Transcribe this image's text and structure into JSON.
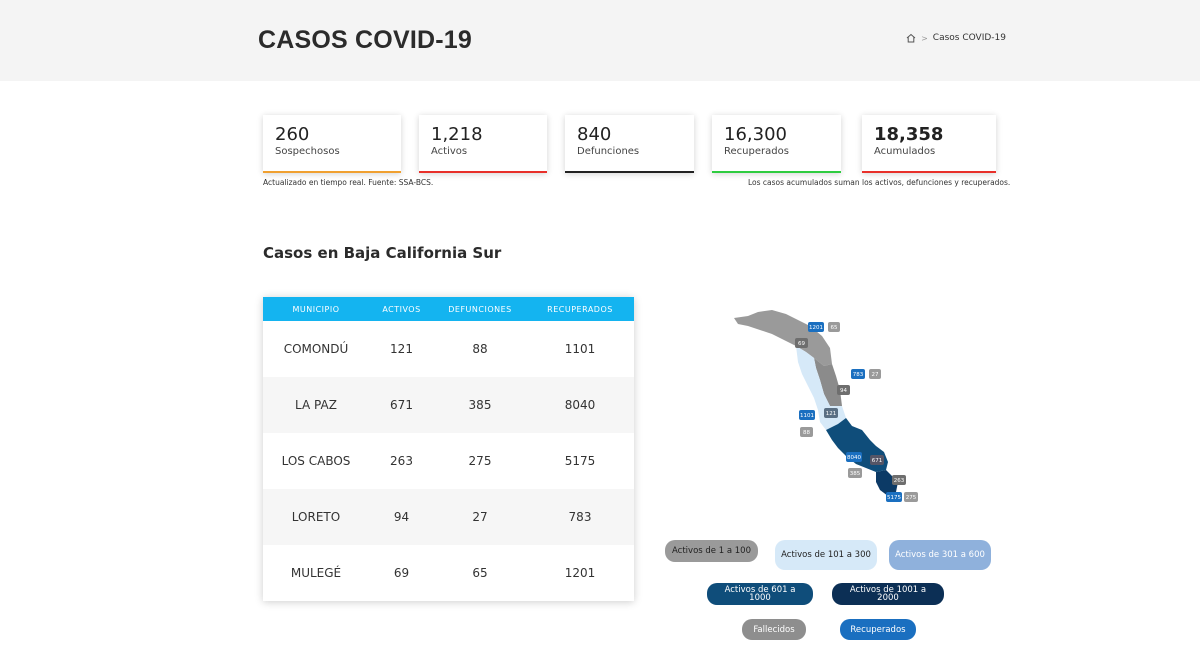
{
  "header": {
    "title": "CASOS COVID-19",
    "breadcrumb_current": "Casos COVID-19"
  },
  "stats": [
    {
      "value": "260",
      "label": "Sospechosos",
      "color": "#f0a030"
    },
    {
      "value": "1,218",
      "label": "Activos",
      "color": "#e8302a"
    },
    {
      "value": "840",
      "label": "Defunciones",
      "color": "#222222"
    },
    {
      "value": "16,300",
      "label": "Recuperados",
      "color": "#2ecc40"
    },
    {
      "value": "18,358",
      "label": "Acumulados",
      "color": "#e8302a"
    }
  ],
  "notes": {
    "left": "Actualizado en tiempo real. Fuente: SSA-BCS.",
    "right": "Los casos acumulados suman los activos, defunciones y recuperados."
  },
  "section_title": "Casos en Baja California Sur",
  "table": {
    "headers": [
      "MUNICIPIO",
      "ACTIVOS",
      "DEFUNCIONES",
      "RECUPERADOS"
    ],
    "rows": [
      [
        "COMONDÚ",
        "121",
        "88",
        "1101"
      ],
      [
        "LA PAZ",
        "671",
        "385",
        "8040"
      ],
      [
        "LOS CABOS",
        "263",
        "275",
        "5175"
      ],
      [
        "LORETO",
        "94",
        "27",
        "783"
      ],
      [
        "MULEGÉ",
        "69",
        "65",
        "1201"
      ]
    ]
  },
  "map_labels": {
    "mulege_rec": "1201",
    "mulege_def": "65",
    "mulege_act": "69",
    "loreto_rec": "783",
    "loreto_def": "27",
    "loreto_act": "94",
    "comondu_rec": "1101",
    "comondu_def": "88",
    "comondu_act": "121",
    "lapaz_rec": "8040",
    "lapaz_def": "385",
    "lapaz_act": "671",
    "loscabos_rec": "5175",
    "loscabos_def": "275",
    "loscabos_act": "263"
  },
  "legend": {
    "a1": "Activos de 1 a 100",
    "a2": "Activos de 101 a 300",
    "a3": "Activos de 301 a 600",
    "a4": "Activos de 601 a 1000",
    "a5": "Activos de 1001 a 2000",
    "fallecidos": "Fallecidos",
    "recuperados": "Recuperados"
  },
  "colors": {
    "accent": "#14b4f0",
    "grey": "#9a9a9a",
    "light_blue": "#d6e9f8",
    "mid_blue": "#8fb1dc",
    "dark_blue": "#0f4d7a",
    "navy": "#0c2f55",
    "recovered_blue": "#1a6fc0"
  }
}
